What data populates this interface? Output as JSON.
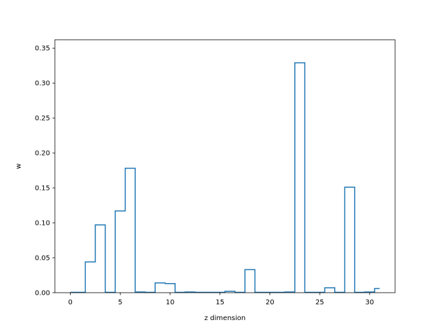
{
  "chart_data": {
    "type": "step",
    "title": "",
    "xlabel": "z dimension",
    "ylabel": "w",
    "xlim": [
      -1.55,
      32.55
    ],
    "ylim": [
      0,
      0.362
    ],
    "xticks": [
      0,
      5,
      10,
      15,
      20,
      25,
      30
    ],
    "yticks": [
      0.0,
      0.05,
      0.1,
      0.15,
      0.2,
      0.25,
      0.3,
      0.35
    ],
    "x": [
      0,
      1,
      2,
      3,
      4,
      5,
      6,
      7,
      8,
      9,
      10,
      11,
      12,
      13,
      14,
      15,
      16,
      17,
      18,
      19,
      20,
      21,
      22,
      23,
      24,
      25,
      26,
      27,
      28,
      29,
      30,
      31
    ],
    "values": [
      0.0005,
      0.0005,
      0.044,
      0.097,
      0.0005,
      0.117,
      0.178,
      0.001,
      0.0005,
      0.014,
      0.013,
      0.0005,
      0.001,
      0.0005,
      0.0005,
      0.0005,
      0.002,
      0.0005,
      0.033,
      0.0005,
      0.0005,
      0.0005,
      0.001,
      0.329,
      0.0005,
      0.0005,
      0.007,
      0.0005,
      0.151,
      0.0005,
      0.001,
      0.006
    ],
    "grid": false,
    "color": "#1f77b4"
  }
}
